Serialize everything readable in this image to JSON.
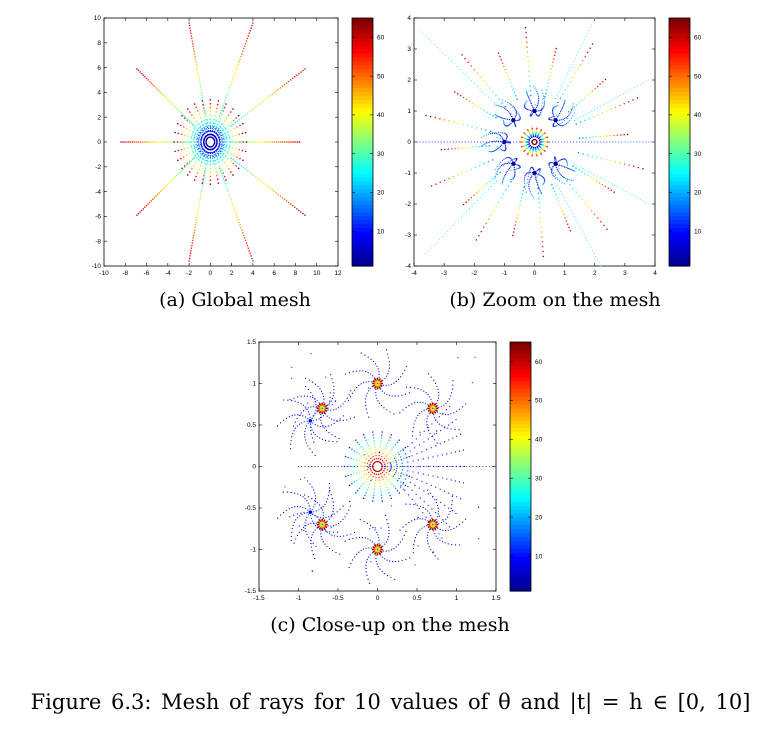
{
  "figure_caption": "Figure 6.3:    Mesh of rays for  10  values of  θ  and  |t| = h ∈ [0,  10]",
  "colors": {
    "jet": [
      "#00008f",
      "#0000ff",
      "#0080ff",
      "#00ffff",
      "#80ff80",
      "#ffff00",
      "#ff8000",
      "#ff0000",
      "#800000"
    ]
  },
  "chart_data": [
    {
      "type": "scatter",
      "caption": "(a)  Global mesh",
      "xlim": [
        -10,
        12
      ],
      "ylim": [
        -10,
        10
      ],
      "xticks": [
        "-10",
        "-8",
        "-6",
        "-4",
        "-2",
        "0",
        "2",
        "4",
        "6",
        "8",
        "10",
        "12"
      ],
      "yticks": [
        "-10",
        "-8",
        "-6",
        "-4",
        "-2",
        "0",
        "2",
        "4",
        "6",
        "8",
        "10"
      ],
      "colorbar": {
        "range": [
          1,
          65
        ],
        "ticks": [
          "10",
          "20",
          "30",
          "40",
          "50",
          "60"
        ]
      },
      "series": [
        {
          "values": [
            {
              "x": 8.4,
              "y": 0
            },
            {
              "x": -8.4,
              "y": 0
            },
            {
              "x": 8.9,
              "y": 5.9
            },
            {
              "x": -6.9,
              "y": 5.9
            },
            {
              "x": 8.9,
              "y": -5.9
            },
            {
              "x": -6.9,
              "y": -5.9
            },
            {
              "x": 4.0,
              "y": 9.6
            },
            {
              "x": -2.0,
              "y": 9.6
            },
            {
              "x": 4.0,
              "y": -9.6
            },
            {
              "x": -2.0,
              "y": -9.6
            }
          ]
        }
      ]
    },
    {
      "type": "scatter",
      "caption": "(b)  Zoom on the mesh",
      "xlim": [
        -4,
        4
      ],
      "ylim": [
        -4,
        4
      ],
      "xticks": [
        "-4",
        "-3",
        "-2",
        "-1",
        "0",
        "1",
        "2",
        "3",
        "4"
      ],
      "yticks": [
        "-4",
        "-3",
        "-2",
        "-1",
        "0",
        "1",
        "2",
        "3",
        "4"
      ],
      "colorbar": {
        "range": [
          1,
          65
        ],
        "ticks": [
          "10",
          "20",
          "30",
          "40",
          "50",
          "60"
        ]
      },
      "series": [
        {
          "values": [
            {
              "x": 0,
              "y": 0
            },
            {
              "x": 0.7,
              "y": 0.7
            },
            {
              "x": 0,
              "y": 1
            },
            {
              "x": -0.7,
              "y": 0.7
            },
            {
              "x": -1,
              "y": 0
            },
            {
              "x": -0.7,
              "y": -0.7
            },
            {
              "x": 0,
              "y": -1
            },
            {
              "x": 0.7,
              "y": -0.7
            }
          ]
        }
      ]
    },
    {
      "type": "scatter",
      "caption": "(c)  Close-up on the mesh",
      "xlim": [
        -1.5,
        1.5
      ],
      "ylim": [
        -1.5,
        1.5
      ],
      "xticks": [
        "-1.5",
        "-1",
        "-0.5",
        "0",
        "0.5",
        "1",
        "1.5"
      ],
      "yticks": [
        "-1.5",
        "-1",
        "-0.5",
        "0",
        "0.5",
        "1",
        "1.5"
      ],
      "colorbar": {
        "range": [
          1,
          65
        ],
        "ticks": [
          "10",
          "20",
          "30",
          "40",
          "50",
          "60"
        ]
      },
      "series": [
        {
          "values": [
            {
              "x": 0,
              "y": 0
            },
            {
              "x": 0,
              "y": 1
            },
            {
              "x": 0.7,
              "y": 0.7
            },
            {
              "x": -0.7,
              "y": 0.7
            },
            {
              "x": -0.85,
              "y": 0.55
            },
            {
              "x": 0,
              "y": -1
            },
            {
              "x": 0.7,
              "y": -0.7
            },
            {
              "x": -0.7,
              "y": -0.7
            },
            {
              "x": -0.85,
              "y": -0.55
            }
          ]
        }
      ]
    }
  ]
}
